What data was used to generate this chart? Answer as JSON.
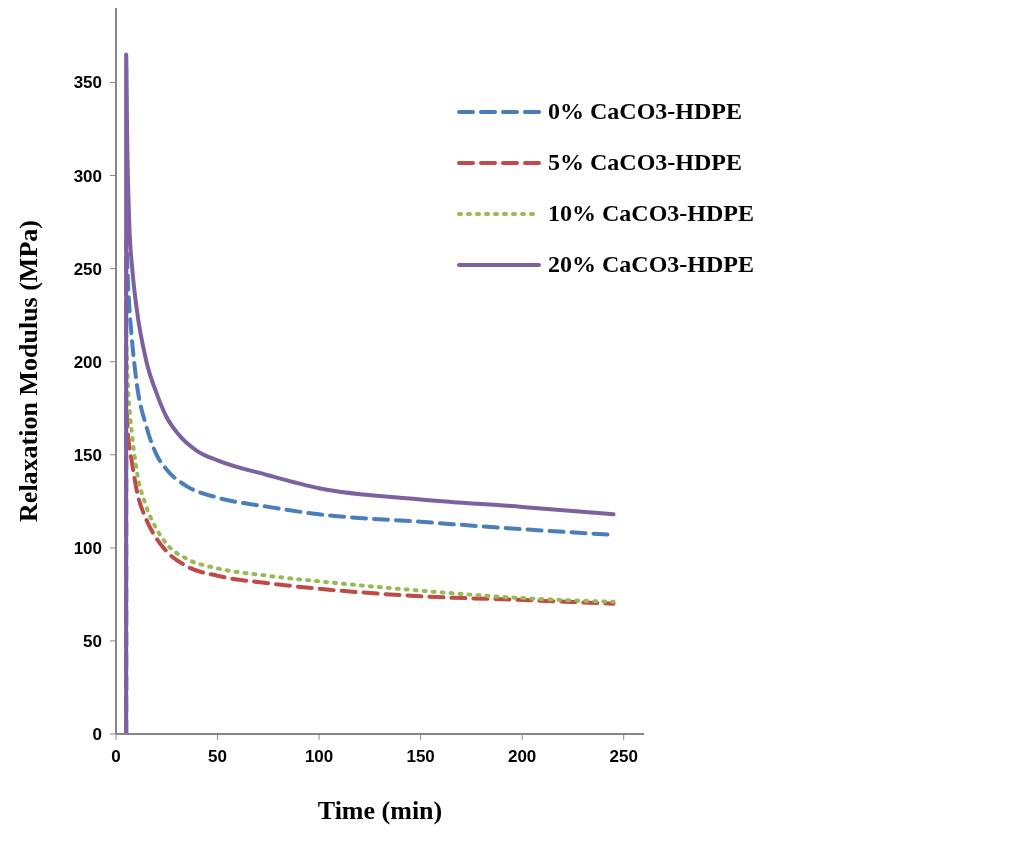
{
  "chart_data": {
    "type": "line",
    "xlabel": "Time (min)",
    "ylabel": "Relaxation Modulus (MPa)",
    "xlim": [
      0,
      260
    ],
    "xticks": [
      0,
      50,
      100,
      150,
      200,
      250
    ],
    "ylim": [
      0,
      390
    ],
    "yticks": [
      0,
      50,
      100,
      150,
      200,
      250,
      300,
      350
    ],
    "grid": false,
    "legend": "top right",
    "marker": "none",
    "series": [
      {
        "name": "0% CaCO3-HDPE",
        "color": "#4a7ebb",
        "line_style": "dashed",
        "x": [
          5,
          5,
          6,
          8,
          10,
          15,
          20,
          25,
          35,
          50,
          75,
          100,
          150,
          200,
          245
        ],
        "values": [
          0,
          265,
          240,
          210,
          190,
          165,
          150,
          142,
          133,
          127,
          122,
          118,
          114,
          110,
          107
        ]
      },
      {
        "name": "5% CaCO3-HDPE",
        "color": "#be4b48",
        "line_style": "dashed",
        "x": [
          5,
          5,
          6,
          8,
          10,
          15,
          20,
          25,
          35,
          50,
          75,
          100,
          150,
          200,
          245
        ],
        "values": [
          0,
          175,
          160,
          145,
          132,
          115,
          105,
          98,
          90,
          85,
          81,
          78,
          74,
          72,
          70
        ]
      },
      {
        "name": "10% CaCO3-HDPE",
        "color": "#98b954",
        "line_style": "dotted",
        "x": [
          5,
          5,
          6,
          8,
          10,
          15,
          20,
          25,
          35,
          50,
          75,
          100,
          150,
          200,
          245
        ],
        "values": [
          0,
          210,
          185,
          160,
          143,
          122,
          110,
          102,
          94,
          89,
          85,
          82,
          77,
          73,
          71
        ]
      },
      {
        "name": "20% CaCO3-HDPE",
        "color": "#7d60a0",
        "line_style": "solid",
        "x": [
          5,
          5,
          5.5,
          6.5,
          8,
          10,
          15,
          20,
          25,
          30,
          40,
          50,
          75,
          100,
          150,
          200,
          245
        ],
        "values": [
          0,
          365,
          320,
          275,
          250,
          230,
          200,
          183,
          170,
          162,
          152,
          147,
          139,
          132,
          126,
          122,
          118
        ]
      }
    ]
  }
}
